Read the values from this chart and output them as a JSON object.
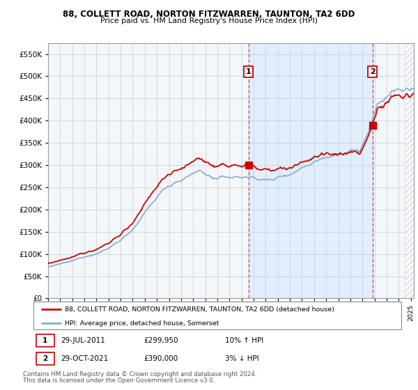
{
  "title1": "88, COLLETT ROAD, NORTON FITZWARREN, TAUNTON, TA2 6DD",
  "title2": "Price paid vs. HM Land Registry's House Price Index (HPI)",
  "legend_line1": "88, COLLETT ROAD, NORTON FITZWARREN, TAUNTON, TA2 6DD (detached house)",
  "legend_line2": "HPI: Average price, detached house, Somerset",
  "annotation1_label": "1",
  "annotation1_date": "29-JUL-2011",
  "annotation1_price": "£299,950",
  "annotation1_hpi": "10% ↑ HPI",
  "annotation1_year": 2011.583,
  "annotation1_value": 299950,
  "annotation2_label": "2",
  "annotation2_date": "29-OCT-2021",
  "annotation2_price": "£390,000",
  "annotation2_hpi": "3% ↓ HPI",
  "annotation2_year": 2021.833,
  "annotation2_value": 390000,
  "footer1": "Contains HM Land Registry data © Crown copyright and database right 2024.",
  "footer2": "This data is licensed under the Open Government Licence v3.0.",
  "red_color": "#cc0000",
  "blue_color": "#88aacc",
  "bg_color_chart": "#f0f4f8",
  "bg_color_span": "#ddeeff",
  "grid_color": "#c8d4e0",
  "ylim_max": 575000,
  "ylim_min": 0,
  "xmin": 1995.0,
  "xmax": 2025.25
}
